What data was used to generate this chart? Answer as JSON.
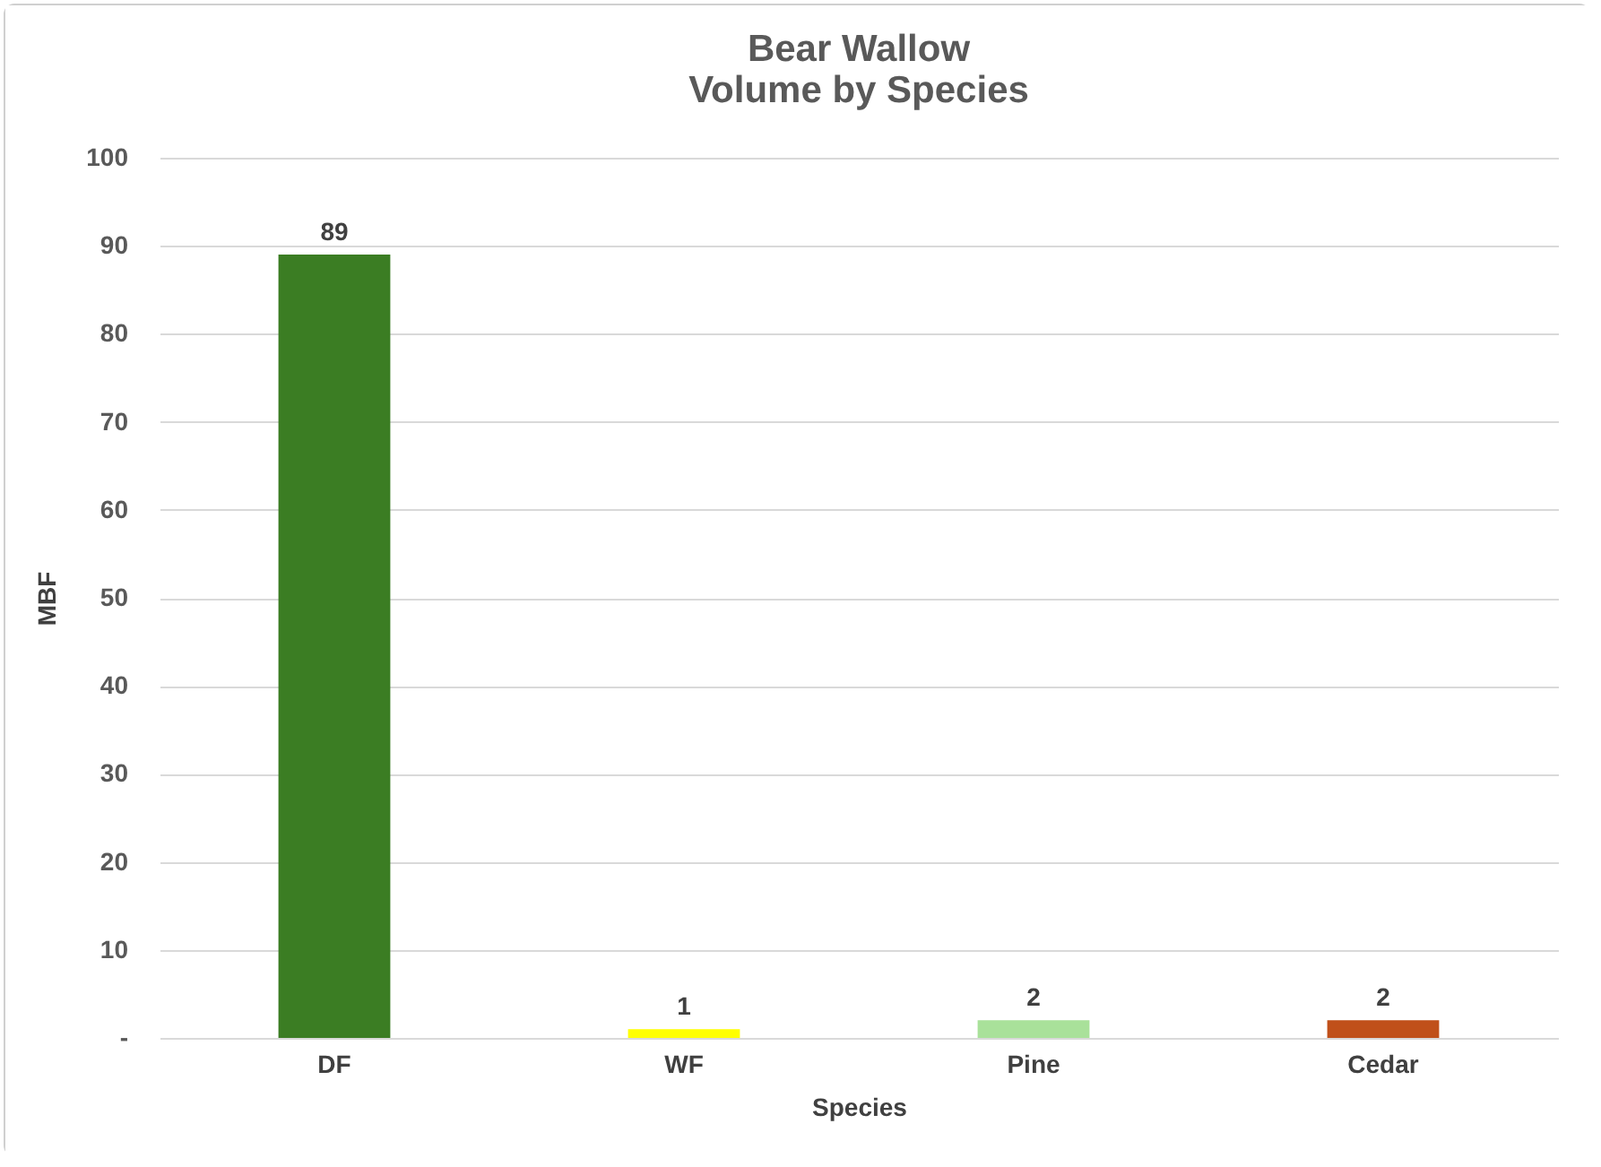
{
  "chart_data": {
    "type": "bar",
    "title": "Bear Wallow",
    "subtitle": "Volume by Species",
    "xlabel": "Species",
    "ylabel": "MBF",
    "categories": [
      "DF",
      "WF",
      "Pine",
      "Cedar"
    ],
    "values": [
      89,
      1,
      2,
      2
    ],
    "colors": [
      "#3b7d23",
      "#ffff00",
      "#a9e19a",
      "#c0501a"
    ],
    "ylim": [
      0,
      100
    ],
    "yticks": [
      {
        "value": 0,
        "label": "-"
      },
      10,
      20,
      30,
      40,
      50,
      60,
      70,
      80,
      90,
      100
    ],
    "grid": "y",
    "data_labels": true
  }
}
